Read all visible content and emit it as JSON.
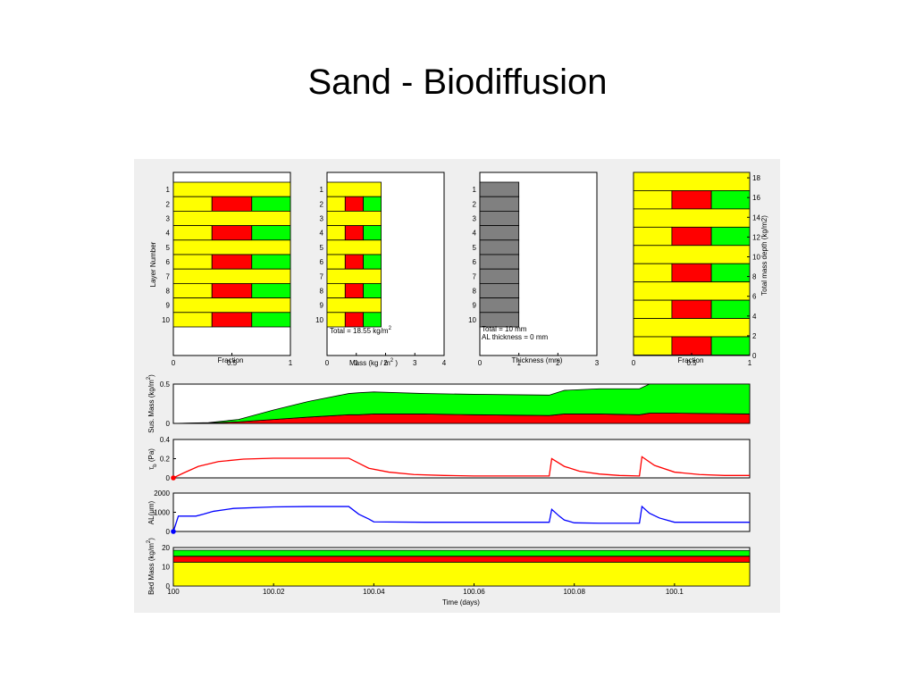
{
  "slide": {
    "title": "Sand - Biodiffusion"
  },
  "colors": {
    "sand": "#ffff00",
    "red_fraction": "#ff0000",
    "green_fraction": "#00ff00",
    "thickness": "#808080",
    "tau_line": "#ff0000",
    "al_line": "#0000ff",
    "panel_bg": "#efefef"
  },
  "chart_data": [
    {
      "id": "fraction-by-layer",
      "type": "bar",
      "orientation": "horizontal",
      "stacked": true,
      "xlabel": "Fraction",
      "ylabel": "Layer Number",
      "xlim": [
        0,
        1
      ],
      "xticks": [
        "0",
        "0.5",
        "1"
      ],
      "categories": [
        "1",
        "2",
        "3",
        "4",
        "5",
        "6",
        "7",
        "8",
        "9",
        "10"
      ],
      "series": [
        {
          "color": "#ffff00",
          "values": [
            1,
            0.33,
            1,
            0.33,
            1,
            0.33,
            1,
            0.33,
            1,
            0.33
          ]
        },
        {
          "color": "#ff0000",
          "values": [
            0,
            0.34,
            0,
            0.34,
            0,
            0.34,
            0,
            0.34,
            0,
            0.34
          ]
        },
        {
          "color": "#00ff00",
          "values": [
            0,
            0.33,
            0,
            0.33,
            0,
            0.33,
            0,
            0.33,
            0,
            0.33
          ]
        }
      ]
    },
    {
      "id": "mass-by-layer",
      "type": "bar",
      "orientation": "horizontal",
      "stacked": true,
      "xlabel": "Mass (kg / m",
      "xlabel_sup": "2",
      "xlabel_tail": " )",
      "xlim": [
        0,
        4
      ],
      "xticks": [
        "0",
        "1",
        "2",
        "3",
        "4"
      ],
      "annotation": "Total = 18.55 kg/m",
      "annotation_sup": "2",
      "categories": [
        "1",
        "2",
        "3",
        "4",
        "5",
        "6",
        "7",
        "8",
        "9",
        "10"
      ],
      "series": [
        {
          "color": "#ffff00",
          "values": [
            1.85,
            0.62,
            1.85,
            0.62,
            1.85,
            0.62,
            1.85,
            0.62,
            1.85,
            0.62
          ]
        },
        {
          "color": "#ff0000",
          "values": [
            0,
            0.62,
            0,
            0.62,
            0,
            0.62,
            0,
            0.62,
            0,
            0.62
          ]
        },
        {
          "color": "#00ff00",
          "values": [
            0,
            0.61,
            0,
            0.61,
            0,
            0.61,
            0,
            0.61,
            0,
            0.61
          ]
        }
      ]
    },
    {
      "id": "thickness-by-layer",
      "type": "bar",
      "orientation": "horizontal",
      "xlabel": "Thickness (mm)",
      "xlim": [
        0,
        3
      ],
      "xticks": [
        "0",
        "1",
        "2",
        "3"
      ],
      "annotation_lines": [
        "Total = 10 mm",
        "AL thickness = 0 mm"
      ],
      "categories": [
        "1",
        "2",
        "3",
        "4",
        "5",
        "6",
        "7",
        "8",
        "9",
        "10"
      ],
      "series": [
        {
          "color": "#808080",
          "values": [
            1,
            1,
            1,
            1,
            1,
            1,
            1,
            1,
            1,
            1
          ]
        }
      ]
    },
    {
      "id": "fraction-by-mass-depth",
      "type": "bar",
      "orientation": "horizontal",
      "stacked": true,
      "xlabel": "Fraction",
      "ylabel": "Total mass depth (kg/m2)",
      "xlim": [
        0,
        1
      ],
      "xticks": [
        "0",
        "0.5",
        "1"
      ],
      "ylim": [
        0,
        18.55
      ],
      "yticks": [
        "0",
        "2",
        "4",
        "6",
        "8",
        "10",
        "12",
        "14",
        "16",
        "18"
      ],
      "layer_mass": [
        1.85,
        1.85,
        1.85,
        1.85,
        1.85,
        1.85,
        1.85,
        1.85,
        1.85,
        1.85
      ],
      "series": [
        {
          "color": "#ffff00",
          "values": [
            1,
            0.33,
            1,
            0.33,
            1,
            0.33,
            1,
            0.33,
            1,
            0.33
          ]
        },
        {
          "color": "#ff0000",
          "values": [
            0,
            0.34,
            0,
            0.34,
            0,
            0.34,
            0,
            0.34,
            0,
            0.34
          ]
        },
        {
          "color": "#00ff00",
          "values": [
            0,
            0.33,
            0,
            0.33,
            0,
            0.33,
            0,
            0.33,
            0,
            0.33
          ]
        }
      ]
    },
    {
      "id": "suspended-mass",
      "type": "area",
      "stacked": true,
      "ylabel": "Sus. Mass (kg/m",
      "ylabel_sup": "2",
      "ylabel_tail": ")",
      "xlim": [
        100,
        100.115
      ],
      "ylim": [
        0,
        0.5
      ],
      "yticks": [
        "0",
        "0.5"
      ],
      "x": [
        100,
        100.007,
        100.013,
        100.02,
        100.027,
        100.035,
        100.037,
        100.04,
        100.05,
        100.06,
        100.075,
        100.078,
        100.085,
        100.093,
        100.095,
        100.1,
        100.115
      ],
      "series": [
        {
          "color": "#ff0000",
          "values": [
            0,
            0.005,
            0.02,
            0.05,
            0.08,
            0.11,
            0.11,
            0.12,
            0.12,
            0.11,
            0.1,
            0.12,
            0.12,
            0.11,
            0.13,
            0.13,
            0.12
          ]
        },
        {
          "color": "#00ff00",
          "values": [
            0,
            0.005,
            0.03,
            0.12,
            0.2,
            0.27,
            0.28,
            0.28,
            0.26,
            0.26,
            0.26,
            0.3,
            0.32,
            0.33,
            0.37,
            0.37,
            0.38
          ]
        }
      ]
    },
    {
      "id": "bed-shear-stress",
      "type": "line",
      "ylabel_main": "τ",
      "ylabel_sub": "b",
      "ylabel_tail": " (Pa)",
      "xlim": [
        100,
        100.115
      ],
      "ylim": [
        0,
        0.4
      ],
      "yticks": [
        "0",
        "0.2",
        "0.4"
      ],
      "marker": {
        "x": 100,
        "y": 0
      },
      "series": [
        {
          "color": "#ff0000",
          "x": [
            100,
            100.002,
            100.005,
            100.009,
            100.014,
            100.02,
            100.027,
            100.035,
            100.039,
            100.043,
            100.048,
            100.054,
            100.06,
            100.065,
            100.07,
            100.075,
            100.0755,
            100.078,
            100.081,
            100.085,
            100.089,
            100.093,
            100.0935,
            100.096,
            100.1,
            100.105,
            100.11,
            100.115
          ],
          "values": [
            0,
            0.05,
            0.12,
            0.17,
            0.195,
            0.205,
            0.205,
            0.205,
            0.1,
            0.06,
            0.035,
            0.025,
            0.02,
            0.02,
            0.02,
            0.02,
            0.2,
            0.12,
            0.07,
            0.04,
            0.025,
            0.02,
            0.22,
            0.13,
            0.06,
            0.035,
            0.025,
            0.025
          ]
        }
      ]
    },
    {
      "id": "active-layer-thickness",
      "type": "line",
      "ylabel": "AL(",
      "ylabel_greek": "μ",
      "ylabel_tail": "m)",
      "xlim": [
        100,
        100.115
      ],
      "ylim": [
        0,
        2000
      ],
      "yticks": [
        "0",
        "1000",
        "2000"
      ],
      "marker": {
        "x": 100,
        "y": 0
      },
      "series": [
        {
          "color": "#0000ff",
          "x": [
            100,
            100.001,
            100.0045,
            100.0045,
            100.006,
            100.008,
            100.012,
            100.02,
            100.027,
            100.035,
            100.037,
            100.039,
            100.04,
            100.05,
            100.075,
            100.0755,
            100.077,
            100.078,
            100.08,
            100.085,
            100.093,
            100.0935,
            100.095,
            100.097,
            100.1,
            100.115
          ],
          "values": [
            0,
            800,
            800,
            800,
            900,
            1050,
            1200,
            1280,
            1300,
            1300,
            900,
            650,
            500,
            480,
            480,
            1150,
            800,
            600,
            450,
            430,
            430,
            1300,
            950,
            700,
            480,
            480
          ]
        }
      ]
    },
    {
      "id": "bed-mass",
      "type": "area",
      "stacked": true,
      "ylabel": "Bed Mass (kg/m",
      "ylabel_sup": "2",
      "ylabel_tail": ")",
      "xlabel": "Time (days)",
      "xlim": [
        100,
        100.115
      ],
      "ylim": [
        0,
        20
      ],
      "yticks": [
        "0",
        "10",
        "20"
      ],
      "xticks": [
        "100",
        "100.02",
        "100.04",
        "100.06",
        "100.08",
        "100.1"
      ],
      "xtick_values": [
        100,
        100.02,
        100.04,
        100.06,
        100.08,
        100.1
      ],
      "x": [
        100,
        100.115
      ],
      "series": [
        {
          "color": "#ffff00",
          "values": [
            12.4,
            12.4
          ]
        },
        {
          "color": "#ff0000",
          "values": [
            3.1,
            3.1
          ]
        },
        {
          "color": "#00ff00",
          "values": [
            3.1,
            3.0
          ]
        }
      ]
    }
  ]
}
